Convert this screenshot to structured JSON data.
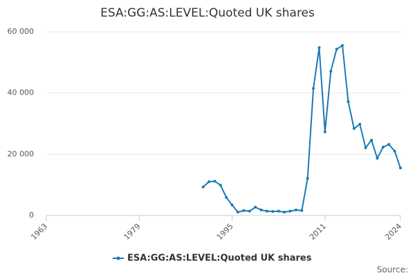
{
  "chart_data": {
    "type": "line",
    "title": "ESA:GG:AS:LEVEL:Quoted UK shares",
    "x": [
      1990,
      1991,
      1992,
      1993,
      1994,
      1995,
      1996,
      1997,
      1998,
      1999,
      2000,
      2001,
      2002,
      2003,
      2004,
      2005,
      2006,
      2007,
      2008,
      2009,
      2010,
      2011,
      2012,
      2013,
      2014,
      2015,
      2016,
      2017,
      2018,
      2019,
      2020,
      2021,
      2022,
      2023,
      2024
    ],
    "series": [
      {
        "name": "ESA:GG:AS:LEVEL:Quoted UK shares",
        "color": "#1a7ab5",
        "values": [
          9300,
          11000,
          11200,
          9900,
          5900,
          3400,
          1100,
          1600,
          1400,
          2700,
          1800,
          1400,
          1300,
          1400,
          1100,
          1400,
          1800,
          1600,
          12100,
          41500,
          54800,
          27300,
          47100,
          54300,
          55500,
          37200,
          28400,
          29800,
          22100,
          24600,
          18700,
          22300,
          23200,
          21000,
          15500
        ]
      }
    ],
    "xlim": [
      1963,
      2024
    ],
    "xticks": [
      1963,
      1979,
      1995,
      2011,
      2024
    ],
    "ylim": [
      0,
      60000
    ],
    "yticks": [
      0,
      {
        "value": 20000,
        "label": "20 000"
      },
      {
        "value": 40000,
        "label": "40 000"
      },
      {
        "value": 60000,
        "label": "60 000"
      }
    ],
    "grid": true,
    "source": "Source:"
  }
}
